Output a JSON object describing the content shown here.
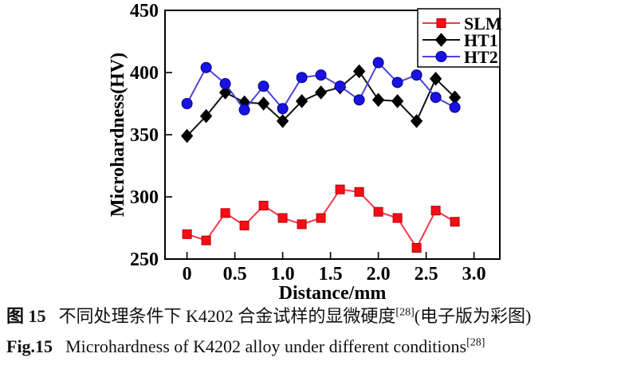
{
  "figure": {
    "caption_cn": {
      "label": "图 15",
      "text": "不同处理条件下 K4202 合金试样的显微硬度",
      "superscript": "[28]",
      "text_after": "(电子版为彩图)"
    },
    "caption_en": {
      "label": "Fig.15",
      "text": "Microhardness of K4202 alloy under different conditions",
      "superscript": "[28]"
    }
  },
  "chart_data": {
    "type": "line",
    "title": "",
    "xlabel": "Distance/mm",
    "ylabel": "Microhardness(HV)",
    "xlim": [
      -0.23,
      3.27
    ],
    "ylim": [
      250,
      450
    ],
    "xticks": [
      0,
      0.5,
      1,
      1.5,
      2,
      2.5,
      3
    ],
    "xtick_labels": [
      "0",
      "0.5",
      "1.0",
      "1.5",
      "2.0",
      "2.5",
      "3.0"
    ],
    "yticks": [
      250,
      300,
      350,
      400,
      450
    ],
    "grid": false,
    "legend_position": "top-right-inside",
    "x": [
      0,
      0.2,
      0.4,
      0.6,
      0.8,
      1.0,
      1.2,
      1.4,
      1.6,
      1.8,
      2.0,
      2.2,
      2.4,
      2.6,
      2.8
    ],
    "series": [
      {
        "name": "SLM",
        "marker": "square",
        "line_color": "#ee3a4a",
        "marker_color": "#f90d14",
        "marker_stroke": "#b00008",
        "values": [
          270,
          265,
          287,
          277,
          293,
          283,
          278,
          283,
          306,
          304,
          288,
          283,
          259,
          289,
          280
        ]
      },
      {
        "name": "HT1",
        "marker": "diamond",
        "line_color": "#111111",
        "marker_color": "#000000",
        "marker_stroke": "#000000",
        "values": [
          349,
          365,
          384,
          376,
          375,
          361,
          377,
          384,
          388,
          401,
          378,
          377,
          361,
          395,
          380
        ]
      },
      {
        "name": "HT2",
        "marker": "circle",
        "line_color": "#4a43d8",
        "marker_color": "#1813e0",
        "marker_stroke": "#00008a",
        "values": [
          375,
          404,
          391,
          370,
          389,
          371,
          396,
          398,
          389,
          378,
          408,
          392,
          398,
          380,
          372
        ]
      }
    ]
  }
}
